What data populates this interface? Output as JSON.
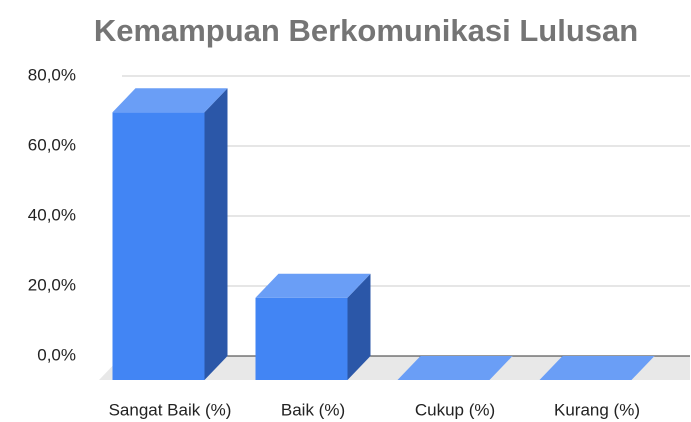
{
  "chart_data": {
    "type": "bar3d",
    "title": "Kemampuan Berkomunikasi Lulusan",
    "categories": [
      "Sangat Baik (%)",
      "Baik (%)",
      "Cukup (%)",
      "Kurang (%)"
    ],
    "values": [
      76.5,
      23.5,
      0,
      0
    ],
    "color": "#4285f4",
    "ylim": [
      0,
      80
    ],
    "yticks": [
      {
        "value": 0,
        "label": "0,0%"
      },
      {
        "value": 20,
        "label": "20,0%"
      },
      {
        "value": 40,
        "label": "40,0%"
      },
      {
        "value": 60,
        "label": "60,0%"
      },
      {
        "value": 80,
        "label": "80,0%"
      }
    ],
    "grid": true
  }
}
